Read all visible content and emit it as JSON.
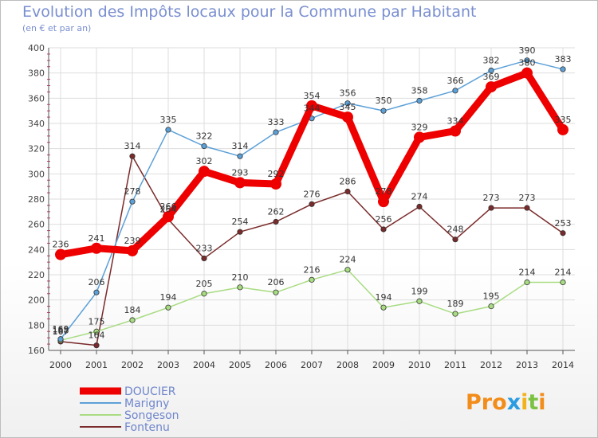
{
  "title": "Evolution des Impôts locaux pour la Commune par Habitant",
  "subtitle": "(en € et par an)",
  "logo": {
    "letters": [
      "P",
      "r",
      "o",
      "x",
      "i",
      "t",
      "i"
    ],
    "colors": [
      "#f28c1a",
      "#f28c1a",
      "#f28c1a",
      "#2a9de0",
      "#f2b21a",
      "#7cc242",
      "#f28c1a"
    ]
  },
  "chart_data": {
    "type": "line",
    "title": "Evolution des Impôts locaux pour la Commune par Habitant",
    "subtitle": "(en € et par an)",
    "xlabel": "",
    "ylabel": "",
    "ylim": [
      160,
      400
    ],
    "yticks": [
      160,
      180,
      200,
      220,
      240,
      260,
      280,
      300,
      320,
      340,
      360,
      380,
      400
    ],
    "x": [
      "2000",
      "2001",
      "2002",
      "2003",
      "2004",
      "2005",
      "2006",
      "2007",
      "2008",
      "2009",
      "2010",
      "2011",
      "2012",
      "2013",
      "2014"
    ],
    "grid": true,
    "legend_position": "bottom-left",
    "series": [
      {
        "name": "DOUCIER",
        "color": "#ee0000",
        "values": [
          236,
          241,
          239,
          266,
          302,
          293,
          292,
          354,
          345,
          278,
          329,
          334,
          369,
          380,
          335
        ],
        "labels": [
          "236",
          "241",
          "239",
          "266",
          "302",
          "293",
          "292",
          "354",
          "345",
          "278",
          "329",
          "334",
          "369",
          "380",
          "335"
        ]
      },
      {
        "name": "Marigny",
        "color": "#5ca0d8",
        "values": [
          169,
          206,
          278,
          335,
          322,
          314,
          333,
          344,
          356,
          350,
          358,
          366,
          382,
          390,
          383
        ],
        "labels": [
          "169",
          "206",
          "278",
          "335",
          "322",
          "314",
          "333",
          "344",
          "356",
          "350",
          "358",
          "366",
          "382",
          "390",
          "383"
        ]
      },
      {
        "name": "Songeson",
        "color": "#a8dc82",
        "values": [
          168,
          175,
          184,
          194,
          205,
          210,
          206,
          216,
          224,
          194,
          199,
          189,
          195,
          214,
          214
        ],
        "labels": [
          "168",
          "175",
          "184",
          "194",
          "205",
          "210",
          "206",
          "216",
          "224",
          "194",
          "199",
          "189",
          "195",
          "214",
          "214"
        ]
      },
      {
        "name": "Fontenu",
        "color": "#7a2a2a",
        "values": [
          167,
          164,
          314,
          264,
          233,
          254,
          262,
          276,
          286,
          256,
          274,
          248,
          273,
          273,
          253
        ],
        "labels": [
          "167",
          "164",
          "314",
          "264",
          "233",
          "254",
          "262",
          "276",
          "286",
          "256",
          "274",
          "248",
          "273",
          "273",
          "253"
        ]
      }
    ]
  }
}
